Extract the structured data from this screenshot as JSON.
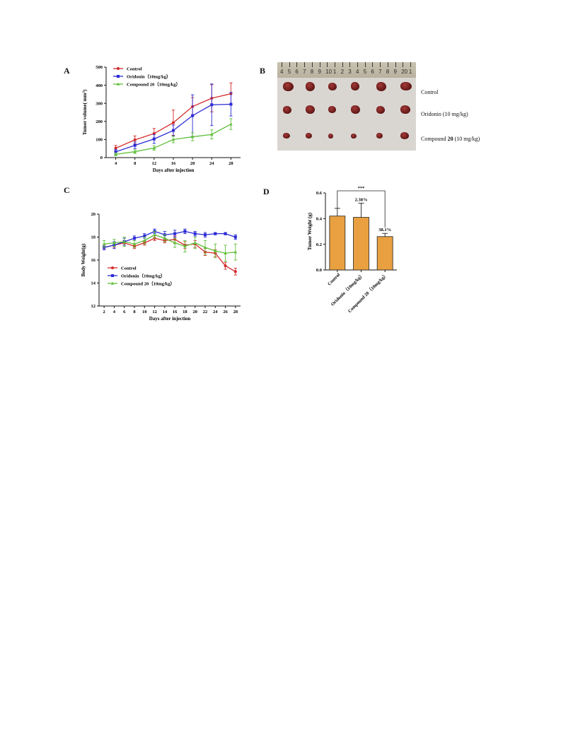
{
  "panels": {
    "a": "A",
    "b": "B",
    "c": "C",
    "d": "D"
  },
  "chart_data": [
    {
      "id": "A",
      "type": "line",
      "xlabel": "Days after injection",
      "ylabel": "Tumor volume( mm",
      "ylabel_sup": "3",
      "ylabel_close": ")",
      "x": [
        4,
        8,
        12,
        16,
        20,
        24,
        28
      ],
      "xlim": [
        2,
        30
      ],
      "ylim": [
        0,
        500
      ],
      "yticks": [
        0,
        100,
        200,
        300,
        400,
        500
      ],
      "legend_position": "top-left",
      "series": [
        {
          "name": "Control",
          "color": "#d42a2a",
          "values": [
            52,
            98,
            133,
            193,
            282,
            328,
            353
          ],
          "errors": [
            15,
            22,
            28,
            70,
            50,
            75,
            60
          ]
        },
        {
          "name": "Oridonin（10mg/kg）",
          "color": "#2b2bd6",
          "values": [
            32,
            68,
            103,
            150,
            232,
            292,
            295
          ],
          "errors": [
            12,
            18,
            25,
            30,
            115,
            115,
            65
          ]
        },
        {
          "name": "Compound 20（10mg/kg）",
          "color": "#5fbf3a",
          "values": [
            18,
            33,
            53,
            100,
            115,
            128,
            185
          ],
          "errors": [
            8,
            10,
            12,
            18,
            22,
            25,
            30
          ]
        }
      ]
    },
    {
      "id": "C",
      "type": "line",
      "xlabel": "Days after injection",
      "ylabel": "Body Weight(g)",
      "x": [
        2,
        4,
        6,
        8,
        10,
        12,
        14,
        16,
        18,
        20,
        22,
        24,
        26,
        28
      ],
      "xlim": [
        1,
        29
      ],
      "ylim": [
        12,
        20
      ],
      "yticks": [
        12,
        14,
        16,
        18,
        20
      ],
      "legend_position": "bottom-left",
      "series": [
        {
          "name": "Control",
          "color": "#d42a2a",
          "values": [
            17.1,
            17.3,
            17.5,
            17.2,
            17.5,
            17.9,
            17.7,
            17.8,
            17.3,
            17.4,
            16.7,
            16.6,
            15.5,
            15.0
          ],
          "errors": [
            0.2,
            0.2,
            0.2,
            0.2,
            0.2,
            0.2,
            0.2,
            0.3,
            0.3,
            0.3,
            0.3,
            0.3,
            0.3,
            0.3
          ]
        },
        {
          "name": "Oridonin（10mg/kg）",
          "color": "#2b2bd6",
          "values": [
            17.1,
            17.3,
            17.6,
            17.9,
            18.1,
            18.5,
            18.2,
            18.3,
            18.5,
            18.3,
            18.2,
            18.3,
            18.3,
            18.0
          ],
          "errors": [
            0.2,
            0.3,
            0.3,
            0.2,
            0.2,
            0.2,
            0.3,
            0.3,
            0.2,
            0.2,
            0.2,
            0.1,
            0.1,
            0.2
          ]
        },
        {
          "name": "Compound 20（10mg/kg）",
          "color": "#5fbf3a",
          "values": [
            17.4,
            17.5,
            17.6,
            17.4,
            17.7,
            18.2,
            17.9,
            17.5,
            17.2,
            17.5,
            17.1,
            16.8,
            16.6,
            16.7
          ],
          "errors": [
            0.3,
            0.3,
            0.4,
            0.3,
            0.3,
            0.3,
            0.3,
            0.4,
            0.5,
            0.5,
            0.6,
            0.6,
            0.7,
            0.7
          ]
        }
      ]
    },
    {
      "id": "D",
      "type": "bar",
      "ylabel": "Tumor Weight (g)",
      "categories": [
        "Control",
        "Oridonin（10mg/kg）",
        "Compound 20（10mg/kg）"
      ],
      "values": [
        0.42,
        0.41,
        0.26
      ],
      "errors": [
        0.06,
        0.11,
        0.025
      ],
      "ylim": [
        0,
        0.6
      ],
      "yticks": [
        "0.0",
        "0.2",
        "0.4",
        "0.6"
      ],
      "bar_color": "#e8a040",
      "bar_labels": [
        "",
        "2.38%",
        "38.1%"
      ],
      "significance": "***"
    }
  ],
  "photo": {
    "ruler_numbers": [
      "4",
      "5",
      "6",
      "7",
      "8",
      "9",
      "10",
      "1",
      "2",
      "3",
      "4",
      "5",
      "6",
      "7",
      "8",
      "9",
      "20",
      "1"
    ],
    "row_labels": [
      "Control",
      "Oridonin (10 mg/kg)"
    ],
    "row3_label_pre": "Compound ",
    "row3_label_bold": "20",
    "row3_label_post": " (10 mg/kg)"
  }
}
